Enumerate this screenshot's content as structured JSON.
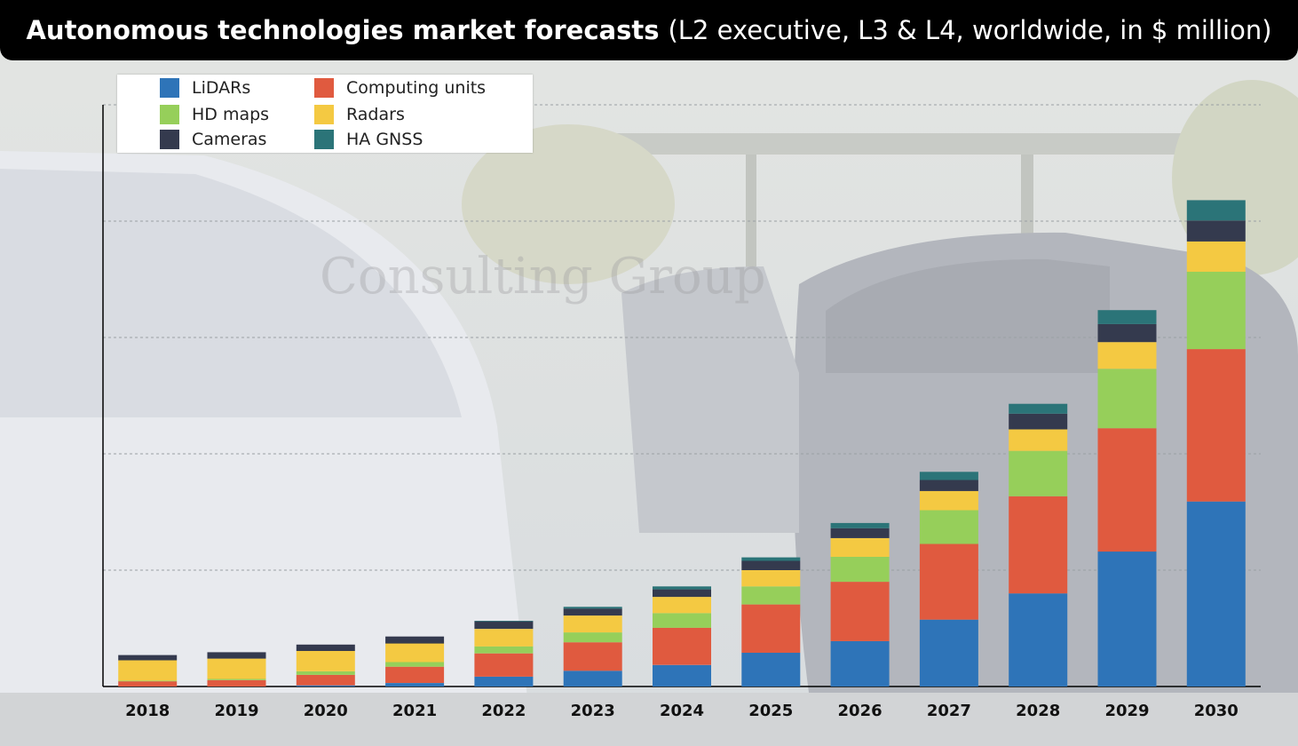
{
  "title": {
    "bold": "Autonomous technologies market forecasts",
    "light": "(L2 executive, L3 & L4, worldwide, in $ million)"
  },
  "watermark": "Consulting Group",
  "chart_data": {
    "type": "bar",
    "stacked": true,
    "title": "Autonomous technologies market forecasts (L2 executive, L3 & L4, worldwide, in $ million)",
    "xlabel": "",
    "ylabel": "",
    "y_tick_labels_shown": false,
    "grid": true,
    "legend_position": "top-left",
    "ylim": [
      0,
      1000
    ],
    "categories": [
      "2018",
      "2019",
      "2020",
      "2021",
      "2022",
      "2023",
      "2024",
      "2025",
      "2026",
      "2027",
      "2028",
      "2029",
      "2030"
    ],
    "series": [
      {
        "name": "LiDARs",
        "color": "#2e74b8",
        "values": [
          0,
          0,
          2,
          6,
          17,
          27,
          37,
          58,
          78,
          115,
          160,
          232,
          318
        ]
      },
      {
        "name": "Computing units",
        "color": "#e05a3f",
        "values": [
          9,
          11,
          18,
          28,
          40,
          49,
          64,
          83,
          102,
          130,
          167,
          212,
          262
        ]
      },
      {
        "name": "HD maps",
        "color": "#96cf5a",
        "values": [
          1,
          2,
          6,
          8,
          12,
          17,
          25,
          31,
          43,
          58,
          78,
          102,
          133
        ]
      },
      {
        "name": "Radars",
        "color": "#f4c942",
        "values": [
          35,
          35,
          35,
          32,
          30,
          29,
          28,
          28,
          32,
          33,
          37,
          46,
          52
        ]
      },
      {
        "name": "Cameras",
        "color": "#343a4e",
        "values": [
          9,
          11,
          11,
          12,
          13,
          12,
          13,
          16,
          17,
          19,
          27,
          31,
          36
        ]
      },
      {
        "name": "HA GNSS",
        "color": "#2b7478",
        "values": [
          0,
          0,
          0,
          0,
          1,
          3,
          5,
          6,
          9,
          14,
          17,
          24,
          35
        ]
      }
    ]
  },
  "legend_order": [
    0,
    1,
    2,
    3,
    4,
    5
  ]
}
